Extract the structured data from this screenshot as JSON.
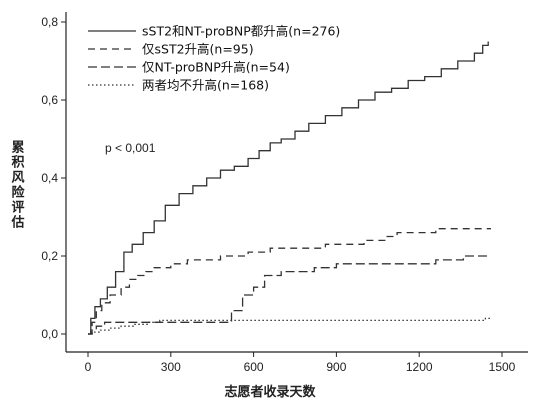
{
  "chart_data": {
    "type": "line",
    "title": "",
    "xlabel": "志愿者收录天数",
    "ylabel": "累积风险评估",
    "xlim": [
      0,
      1550
    ],
    "ylim": [
      0,
      0.83
    ],
    "xticks": [
      0,
      300,
      600,
      900,
      1200,
      1500
    ],
    "yticks": [
      0.0,
      0.2,
      0.4,
      0.6,
      0.8
    ],
    "xtick_labels": [
      "0",
      "300",
      "600",
      "900",
      "1200",
      "1500"
    ],
    "ytick_labels": [
      "0,0",
      "0,2",
      "0,4",
      "0,6",
      "0,8"
    ],
    "legend_position": "top-left",
    "annotation": "p < 0,001",
    "series": [
      {
        "name": "sST2和NT-proBNP都升高(n=276)",
        "style": "solid",
        "x": [
          0,
          10,
          25,
          45,
          70,
          100,
          130,
          160,
          200,
          240,
          280,
          330,
          380,
          430,
          480,
          530,
          580,
          620,
          660,
          700,
          750,
          800,
          860,
          920,
          980,
          1040,
          1100,
          1160,
          1220,
          1280,
          1340,
          1400,
          1430,
          1450
        ],
        "y": [
          0.0,
          0.04,
          0.07,
          0.09,
          0.12,
          0.16,
          0.21,
          0.23,
          0.26,
          0.29,
          0.33,
          0.36,
          0.38,
          0.4,
          0.42,
          0.43,
          0.45,
          0.47,
          0.49,
          0.5,
          0.52,
          0.54,
          0.56,
          0.58,
          0.6,
          0.62,
          0.63,
          0.65,
          0.66,
          0.68,
          0.7,
          0.72,
          0.74,
          0.75
        ]
      },
      {
        "name": "仅sST2升高(n=95)",
        "style": "dashed",
        "x": [
          0,
          15,
          30,
          50,
          80,
          120,
          150,
          180,
          210,
          240,
          300,
          360,
          400,
          480,
          580,
          660,
          760,
          860,
          1000,
          1080,
          1120,
          1200,
          1260,
          1460
        ],
        "y": [
          0.0,
          0.03,
          0.06,
          0.08,
          0.1,
          0.12,
          0.14,
          0.15,
          0.16,
          0.17,
          0.18,
          0.19,
          0.19,
          0.2,
          0.21,
          0.22,
          0.22,
          0.23,
          0.24,
          0.25,
          0.26,
          0.26,
          0.27,
          0.27
        ]
      },
      {
        "name": "仅NT-proBNP升高(n=54)",
        "style": "longdash",
        "x": [
          0,
          10,
          30,
          60,
          100,
          200,
          330,
          420,
          510,
          520,
          560,
          600,
          640,
          700,
          820,
          900,
          1050,
          1150,
          1230,
          1260,
          1300,
          1340,
          1360,
          1440,
          1460
        ],
        "y": [
          0.0,
          0.01,
          0.02,
          0.03,
          0.03,
          0.03,
          0.03,
          0.03,
          0.03,
          0.06,
          0.1,
          0.12,
          0.15,
          0.16,
          0.17,
          0.18,
          0.18,
          0.18,
          0.18,
          0.19,
          0.19,
          0.19,
          0.2,
          0.2,
          0.2
        ]
      },
      {
        "name": "两者均不升高(n=168)",
        "style": "dotted",
        "x": [
          0,
          15,
          40,
          80,
          120,
          170,
          220,
          260,
          300,
          400,
          600,
          800,
          1000,
          1200,
          1400,
          1440,
          1460
        ],
        "y": [
          0.0,
          0.005,
          0.01,
          0.015,
          0.02,
          0.025,
          0.03,
          0.035,
          0.035,
          0.035,
          0.035,
          0.035,
          0.035,
          0.035,
          0.035,
          0.04,
          0.04
        ]
      }
    ]
  }
}
